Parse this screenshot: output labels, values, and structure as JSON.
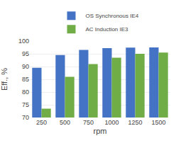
{
  "chart_data": {
    "type": "bar",
    "categories": [
      250,
      500,
      750,
      1000,
      1250,
      1500
    ],
    "series": [
      {
        "name": "OS Synchronous IE4",
        "color": "#4472C4",
        "values": [
          89.5,
          94.5,
          96.5,
          97.2,
          97.4,
          97.5
        ]
      },
      {
        "name": "AC Induction IE3",
        "color": "#70AD47",
        "values": [
          73.5,
          86.0,
          91.0,
          93.5,
          95.0,
          95.5
        ]
      }
    ],
    "ylabel": "Eff., %",
    "xlabel": "rpm",
    "ylim": [
      70,
      100
    ],
    "yticks": [
      70,
      75,
      80,
      85,
      90,
      95,
      100
    ],
    "grid": true,
    "legend": "top"
  }
}
